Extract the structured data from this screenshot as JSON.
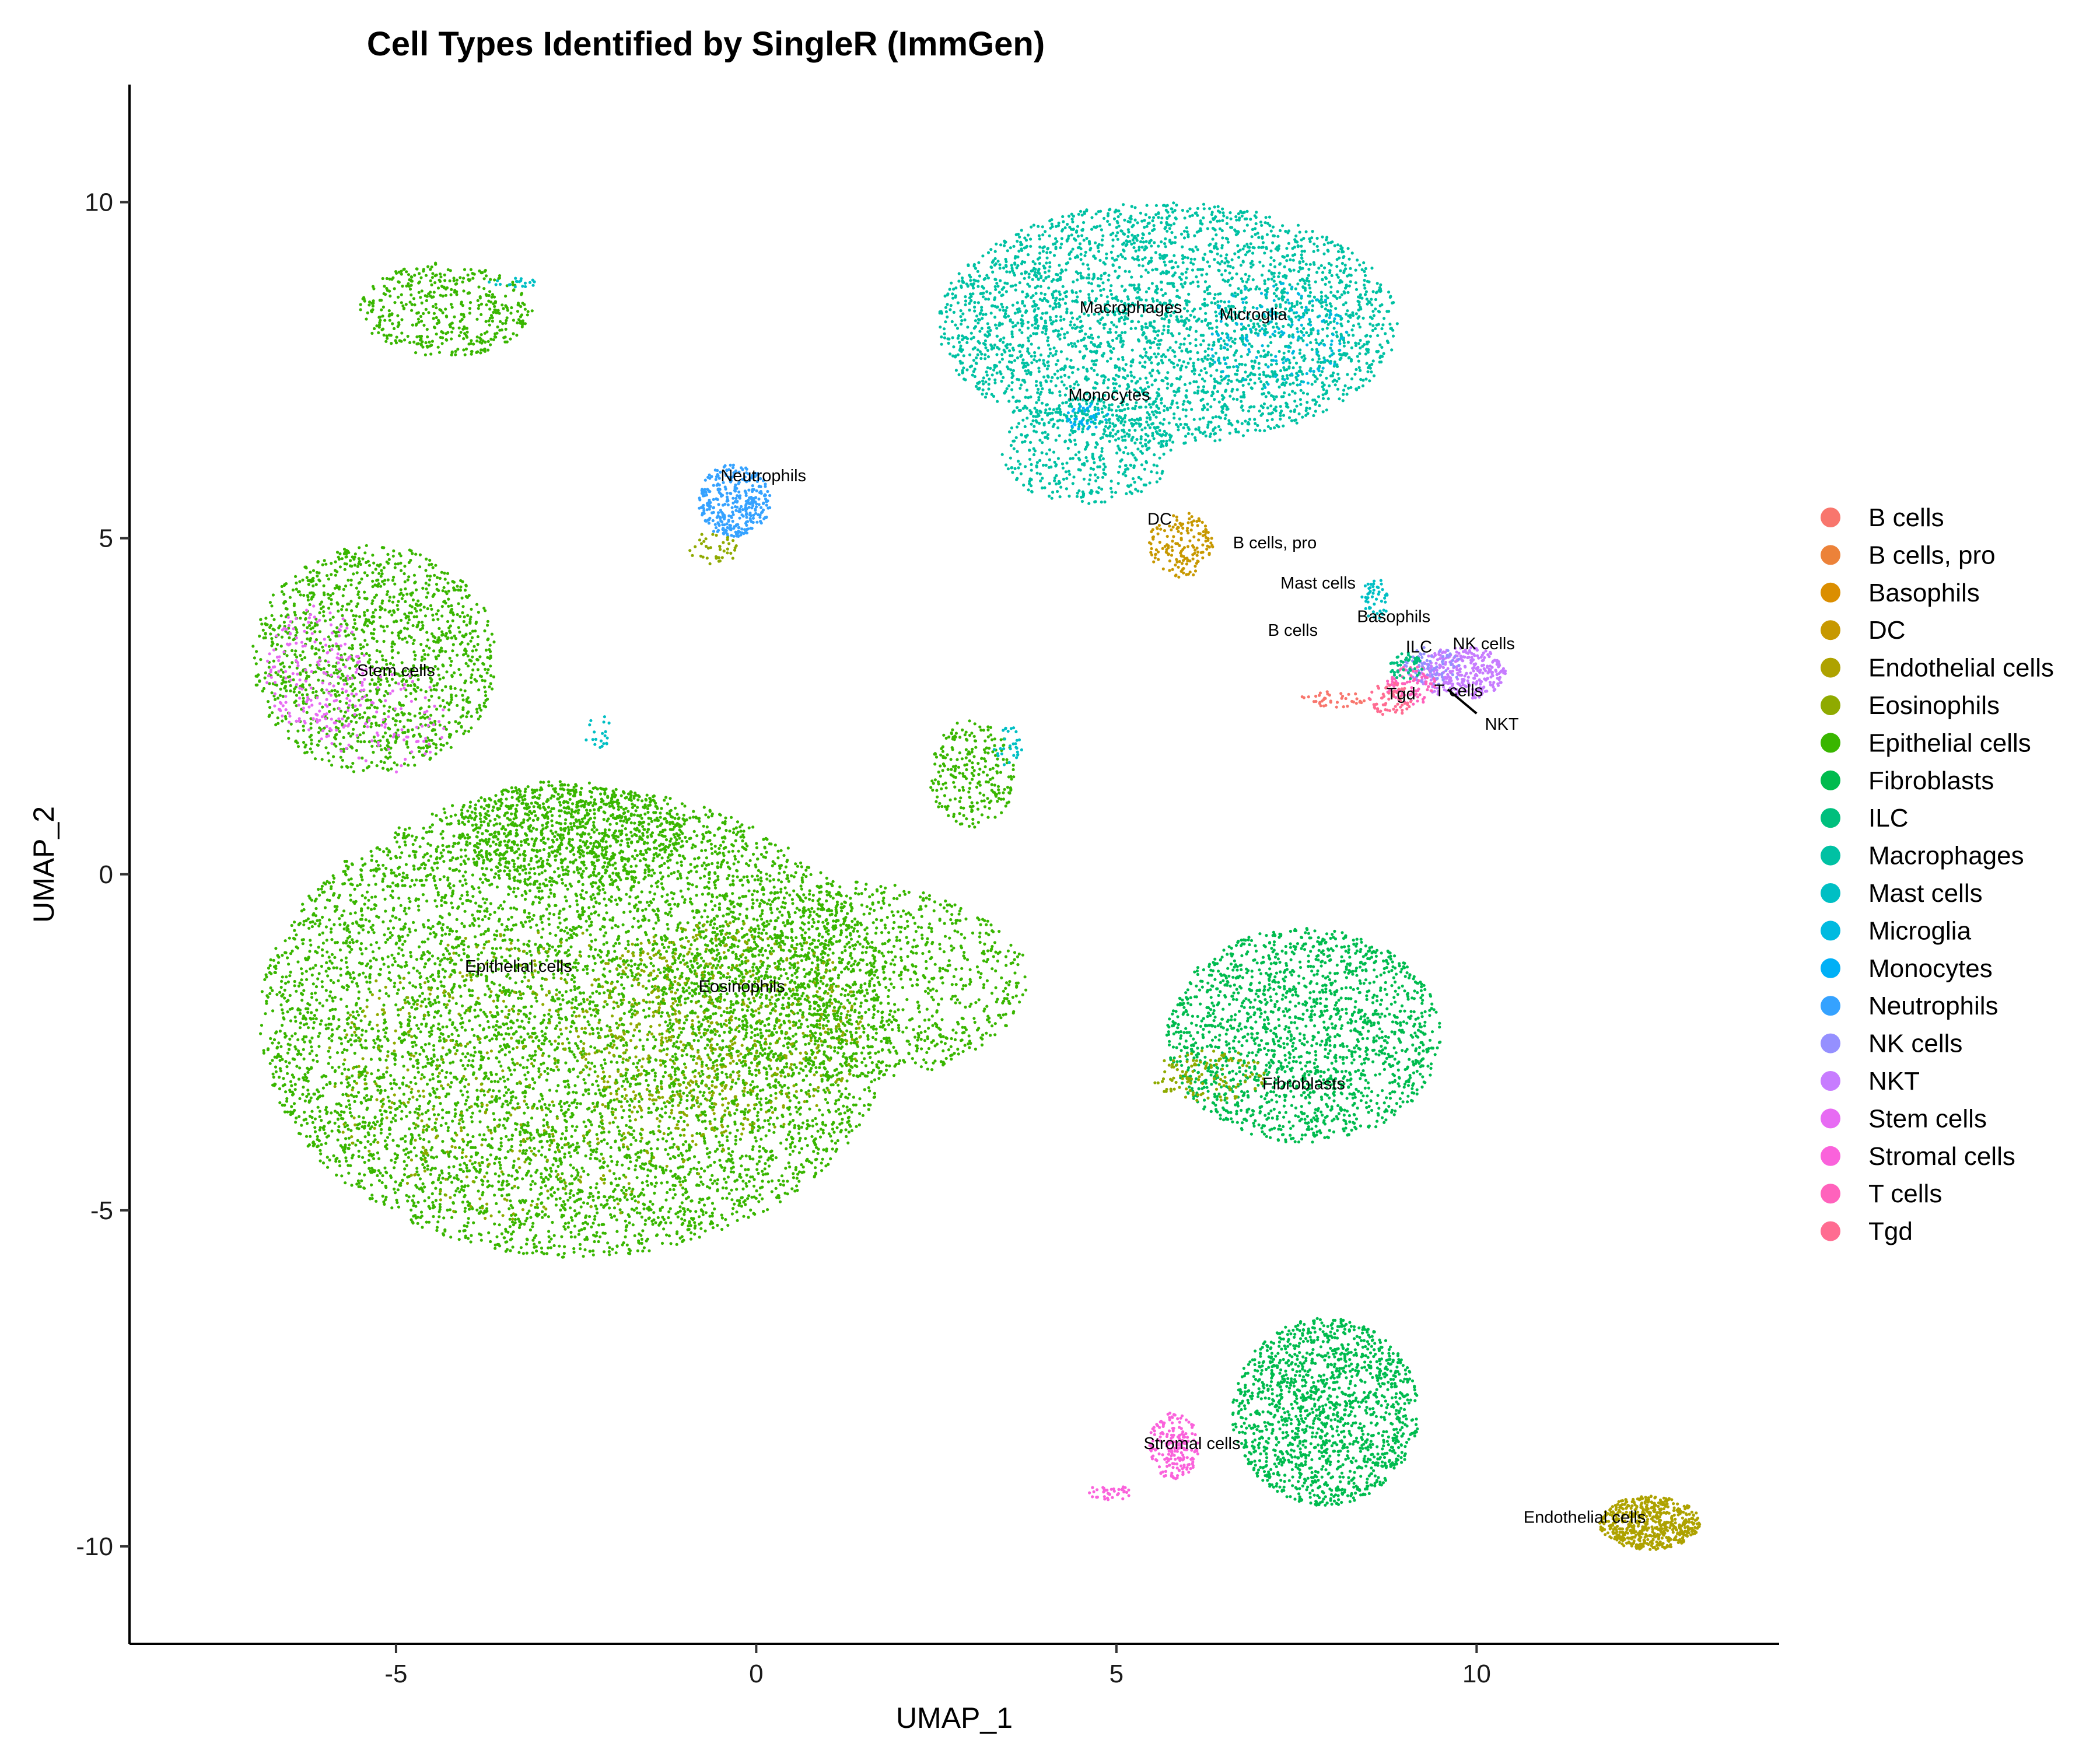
{
  "chart_data": {
    "type": "scatter",
    "title": "Cell Types Identified by SingleR (ImmGen)",
    "xlabel": "UMAP_1",
    "ylabel": "UMAP_2",
    "xlim": [
      -8.7,
      14.2
    ],
    "ylim": [
      -11.45,
      11.75
    ],
    "xticks": [
      -5,
      0,
      5,
      10
    ],
    "yticks": [
      -10,
      -5,
      0,
      5,
      10
    ],
    "grid": false,
    "legend_position": "right",
    "legend": [
      {
        "name": "B cells",
        "color": "#F8766D"
      },
      {
        "name": "B cells, pro",
        "color": "#EC8239"
      },
      {
        "name": "Basophils",
        "color": "#DB8E00"
      },
      {
        "name": "DC",
        "color": "#C79800"
      },
      {
        "name": "Endothelial cells",
        "color": "#AEA200"
      },
      {
        "name": "Eosinophils",
        "color": "#8FAA00"
      },
      {
        "name": "Epithelial cells",
        "color": "#39B600"
      },
      {
        "name": "Fibroblasts",
        "color": "#00BB4E"
      },
      {
        "name": "ILC",
        "color": "#00BF7D"
      },
      {
        "name": "Macrophages",
        "color": "#00C1A3"
      },
      {
        "name": "Mast cells",
        "color": "#00BFC4"
      },
      {
        "name": "Microglia",
        "color": "#00BAE0"
      },
      {
        "name": "Monocytes",
        "color": "#00B0F6"
      },
      {
        "name": "Neutrophils",
        "color": "#35A2FF"
      },
      {
        "name": "NK cells",
        "color": "#9590FF"
      },
      {
        "name": "NKT",
        "color": "#C77CFF"
      },
      {
        "name": "Stem cells",
        "color": "#E76BF3"
      },
      {
        "name": "Stromal cells",
        "color": "#FA62DB"
      },
      {
        "name": "T cells",
        "color": "#FF62BC"
      },
      {
        "name": "Tgd",
        "color": "#FF6C91"
      }
    ],
    "cluster_labels": [
      {
        "text": "Macrophages",
        "x": 5.2,
        "y": 8.35
      },
      {
        "text": "Microglia",
        "x": 6.9,
        "y": 8.25
      },
      {
        "text": "Monocytes",
        "x": 4.9,
        "y": 7.05
      },
      {
        "text": "Neutrophils",
        "x": 0.1,
        "y": 5.85
      },
      {
        "text": "DC",
        "x": 5.6,
        "y": 5.2
      },
      {
        "text": "B cells, pro",
        "x": 7.2,
        "y": 4.85
      },
      {
        "text": "Mast cells",
        "x": 7.8,
        "y": 4.25
      },
      {
        "text": "Basophils",
        "x": 8.85,
        "y": 3.75
      },
      {
        "text": "B cells",
        "x": 7.45,
        "y": 3.55
      },
      {
        "text": "ILC",
        "x": 9.2,
        "y": 3.3
      },
      {
        "text": "NK cells",
        "x": 10.1,
        "y": 3.35
      },
      {
        "text": "Tgd",
        "x": 8.95,
        "y": 2.6
      },
      {
        "text": "T cells",
        "x": 9.75,
        "y": 2.65
      },
      {
        "text": "NKT",
        "x": 10.35,
        "y": 2.15
      },
      {
        "text": "Stem cells",
        "x": -5.0,
        "y": 2.95
      },
      {
        "text": "Epithelial cells",
        "x": -3.3,
        "y": -1.45
      },
      {
        "text": "Eosinophils",
        "x": -0.2,
        "y": -1.75
      },
      {
        "text": "Fibroblasts",
        "x": 7.6,
        "y": -3.2
      },
      {
        "text": "Stromal cells",
        "x": 6.05,
        "y": -8.55
      },
      {
        "text": "Endothelial cells",
        "x": 11.5,
        "y": -9.65
      }
    ],
    "clusters": [
      {
        "type": "Epithelial cells",
        "cx": -2.5,
        "cy": -2.2,
        "rx": 4.4,
        "ry": 3.5,
        "n": 7000
      },
      {
        "type": "Epithelial cells",
        "cx": -5.3,
        "cy": 3.2,
        "rx": 1.7,
        "ry": 1.7,
        "n": 1400
      },
      {
        "type": "Epithelial cells",
        "cx": 1.2,
        "cy": -1.6,
        "rx": 2.6,
        "ry": 1.5,
        "n": 1300
      },
      {
        "type": "Epithelial cells",
        "cx": -4.3,
        "cy": 8.4,
        "rx": 1.2,
        "ry": 0.7,
        "n": 450
      },
      {
        "type": "Epithelial cells",
        "cx": 3.0,
        "cy": 1.5,
        "rx": 0.6,
        "ry": 0.8,
        "n": 250
      },
      {
        "type": "Epithelial cells",
        "cx": -2.6,
        "cy": 0.6,
        "rx": 1.6,
        "ry": 0.8,
        "n": 700
      },
      {
        "type": "Eosinophils",
        "cx": -0.5,
        "cy": -2.3,
        "rx": 2.0,
        "ry": 1.6,
        "n": 500
      },
      {
        "type": "Eosinophils",
        "cx": -3.0,
        "cy": -3.0,
        "rx": 3.0,
        "ry": 2.2,
        "n": 500
      },
      {
        "type": "Stem cells",
        "cx": -6.1,
        "cy": 3.0,
        "rx": 0.7,
        "ry": 1.0,
        "n": 180
      },
      {
        "type": "Stem cells",
        "cx": -5.2,
        "cy": 2.3,
        "rx": 0.9,
        "ry": 0.8,
        "n": 100
      },
      {
        "type": "Macrophages",
        "cx": 5.7,
        "cy": 8.2,
        "rx": 3.2,
        "ry": 1.8,
        "n": 3200
      },
      {
        "type": "Macrophages",
        "cx": 4.6,
        "cy": 6.3,
        "rx": 1.2,
        "ry": 0.8,
        "n": 400
      },
      {
        "type": "Microglia",
        "cx": 7.2,
        "cy": 8.0,
        "rx": 1.0,
        "ry": 0.8,
        "n": 150
      },
      {
        "type": "Monocytes",
        "cx": 4.6,
        "cy": 6.8,
        "rx": 0.3,
        "ry": 0.2,
        "n": 40
      },
      {
        "type": "Neutrophils",
        "cx": -0.3,
        "cy": 5.55,
        "rx": 0.5,
        "ry": 0.55,
        "n": 350
      },
      {
        "type": "Eosinophils",
        "cx": -0.6,
        "cy": 4.85,
        "rx": 0.35,
        "ry": 0.25,
        "n": 40
      },
      {
        "type": "DC",
        "cx": 5.9,
        "cy": 4.9,
        "rx": 0.45,
        "ry": 0.5,
        "n": 160
      },
      {
        "type": "Mast cells",
        "cx": 8.6,
        "cy": 4.1,
        "rx": 0.2,
        "ry": 0.3,
        "n": 50
      },
      {
        "type": "NKT",
        "cx": 9.8,
        "cy": 3.0,
        "rx": 0.6,
        "ry": 0.4,
        "n": 320
      },
      {
        "type": "NK cells",
        "cx": 9.4,
        "cy": 3.1,
        "rx": 0.4,
        "ry": 0.3,
        "n": 80
      },
      {
        "type": "T cells",
        "cx": 9.1,
        "cy": 2.8,
        "rx": 0.35,
        "ry": 0.3,
        "n": 80
      },
      {
        "type": "Tgd",
        "cx": 8.8,
        "cy": 2.6,
        "rx": 0.3,
        "ry": 0.25,
        "n": 60
      },
      {
        "type": "ILC",
        "cx": 9.0,
        "cy": 3.1,
        "rx": 0.25,
        "ry": 0.2,
        "n": 50
      },
      {
        "type": "B cells",
        "cx": 8.0,
        "cy": 2.6,
        "rx": 0.45,
        "ry": 0.12,
        "n": 40
      },
      {
        "type": "Fibroblasts",
        "cx": 7.6,
        "cy": -2.4,
        "rx": 1.9,
        "ry": 1.6,
        "n": 1800
      },
      {
        "type": "Fibroblasts",
        "cx": 7.9,
        "cy": -8.0,
        "rx": 1.3,
        "ry": 1.4,
        "n": 1500
      },
      {
        "type": "Eosinophils",
        "cx": 6.3,
        "cy": -3.0,
        "rx": 0.8,
        "ry": 0.4,
        "n": 120
      },
      {
        "type": "Stromal cells",
        "cx": 5.8,
        "cy": -8.5,
        "rx": 0.35,
        "ry": 0.5,
        "n": 200
      },
      {
        "type": "Stromal cells",
        "cx": 4.9,
        "cy": -9.2,
        "rx": 0.3,
        "ry": 0.12,
        "n": 40
      },
      {
        "type": "Endothelial cells",
        "cx": 12.4,
        "cy": -9.65,
        "rx": 0.7,
        "ry": 0.4,
        "n": 600
      },
      {
        "type": "Mast cells",
        "cx": 3.5,
        "cy": 1.9,
        "rx": 0.2,
        "ry": 0.3,
        "n": 30
      },
      {
        "type": "Mast cells",
        "cx": -2.2,
        "cy": 2.1,
        "rx": 0.2,
        "ry": 0.3,
        "n": 20
      },
      {
        "type": "Mast cells",
        "cx": -3.4,
        "cy": 8.8,
        "rx": 0.35,
        "ry": 0.08,
        "n": 20
      }
    ]
  }
}
